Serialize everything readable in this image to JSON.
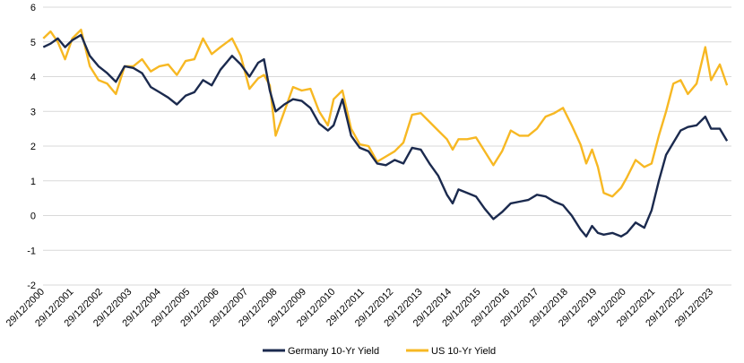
{
  "chart_data": {
    "type": "line",
    "title": "",
    "xlabel": "",
    "ylabel": "",
    "ylim": [
      -2,
      6
    ],
    "yticks": [
      "-2",
      "-1",
      "0",
      "1",
      "2",
      "3",
      "4",
      "5",
      "6"
    ],
    "xlim": [
      2000.99,
      2024.7
    ],
    "xticks": [
      "29/12/2000",
      "29/12/2001",
      "29/12/2002",
      "29/12/2003",
      "29/12/2004",
      "29/12/2005",
      "29/12/2006",
      "29/12/2007",
      "29/12/2008",
      "29/12/2009",
      "29/12/2010",
      "29/12/2011",
      "29/12/2012",
      "29/12/2013",
      "29/12/2014",
      "29/12/2015",
      "29/12/2016",
      "29/12/2017",
      "29/12/2018",
      "29/12/2019",
      "29/12/2020",
      "29/12/2021",
      "29/12/2022",
      "29/12/2023"
    ],
    "grid": "horizontal",
    "legend": "bottom",
    "series": [
      {
        "name": "Germany 10-Yr Yield",
        "color": "#1b2a4e",
        "x": [
          2001.0,
          2001.25,
          2001.5,
          2001.75,
          2002.0,
          2002.3,
          2002.6,
          2002.9,
          2003.2,
          2003.5,
          2003.8,
          2004.1,
          2004.4,
          2004.7,
          2005.0,
          2005.3,
          2005.6,
          2005.9,
          2006.2,
          2006.5,
          2006.8,
          2007.1,
          2007.5,
          2007.8,
          2008.1,
          2008.4,
          2008.6,
          2008.8,
          2009.0,
          2009.3,
          2009.6,
          2009.9,
          2010.2,
          2010.5,
          2010.8,
          2011.0,
          2011.3,
          2011.6,
          2011.9,
          2012.2,
          2012.5,
          2012.8,
          2013.1,
          2013.4,
          2013.7,
          2014.0,
          2014.3,
          2014.6,
          2014.9,
          2015.1,
          2015.3,
          2015.6,
          2015.9,
          2016.2,
          2016.5,
          2016.8,
          2017.1,
          2017.4,
          2017.7,
          2018.0,
          2018.3,
          2018.6,
          2018.9,
          2019.2,
          2019.5,
          2019.7,
          2019.9,
          2020.1,
          2020.3,
          2020.6,
          2020.9,
          2021.1,
          2021.4,
          2021.7,
          2021.95,
          2022.2,
          2022.45,
          2022.7,
          2022.95,
          2023.2,
          2023.5,
          2023.8,
          2024.0,
          2024.3,
          2024.55
        ],
        "values": [
          4.85,
          4.95,
          5.1,
          4.85,
          5.05,
          5.2,
          4.6,
          4.3,
          4.1,
          3.85,
          4.3,
          4.25,
          4.1,
          3.7,
          3.55,
          3.4,
          3.2,
          3.45,
          3.55,
          3.9,
          3.75,
          4.2,
          4.6,
          4.35,
          4.0,
          4.4,
          4.5,
          3.6,
          3.0,
          3.2,
          3.35,
          3.3,
          3.1,
          2.65,
          2.45,
          2.6,
          3.35,
          2.3,
          1.95,
          1.85,
          1.5,
          1.45,
          1.6,
          1.5,
          1.95,
          1.9,
          1.5,
          1.15,
          0.6,
          0.35,
          0.75,
          0.65,
          0.55,
          0.2,
          -0.1,
          0.1,
          0.35,
          0.4,
          0.45,
          0.6,
          0.55,
          0.4,
          0.3,
          0.0,
          -0.4,
          -0.6,
          -0.3,
          -0.5,
          -0.55,
          -0.5,
          -0.6,
          -0.5,
          -0.2,
          -0.35,
          0.15,
          1.0,
          1.75,
          2.1,
          2.45,
          2.55,
          2.6,
          2.85,
          2.5,
          2.5,
          2.15
        ]
      },
      {
        "name": "US 10-Yr Yield",
        "color": "#f7b823",
        "x": [
          2001.0,
          2001.25,
          2001.5,
          2001.75,
          2002.0,
          2002.3,
          2002.6,
          2002.9,
          2003.2,
          2003.5,
          2003.8,
          2004.1,
          2004.4,
          2004.7,
          2005.0,
          2005.3,
          2005.6,
          2005.9,
          2006.2,
          2006.5,
          2006.8,
          2007.1,
          2007.5,
          2007.8,
          2008.1,
          2008.4,
          2008.6,
          2008.8,
          2009.0,
          2009.3,
          2009.6,
          2009.9,
          2010.2,
          2010.5,
          2010.8,
          2011.0,
          2011.3,
          2011.6,
          2011.9,
          2012.2,
          2012.5,
          2012.8,
          2013.1,
          2013.4,
          2013.7,
          2014.0,
          2014.3,
          2014.6,
          2014.9,
          2015.1,
          2015.3,
          2015.6,
          2015.9,
          2016.2,
          2016.5,
          2016.8,
          2017.1,
          2017.4,
          2017.7,
          2018.0,
          2018.3,
          2018.6,
          2018.9,
          2019.2,
          2019.5,
          2019.7,
          2019.9,
          2020.1,
          2020.3,
          2020.6,
          2020.9,
          2021.1,
          2021.4,
          2021.7,
          2021.95,
          2022.2,
          2022.45,
          2022.7,
          2022.95,
          2023.2,
          2023.5,
          2023.8,
          2024.0,
          2024.3,
          2024.55
        ],
        "values": [
          5.1,
          5.3,
          5.0,
          4.5,
          5.1,
          5.35,
          4.3,
          3.9,
          3.8,
          3.5,
          4.3,
          4.3,
          4.5,
          4.15,
          4.3,
          4.35,
          4.05,
          4.45,
          4.5,
          5.1,
          4.65,
          4.85,
          5.1,
          4.6,
          3.65,
          3.95,
          4.05,
          3.75,
          2.3,
          3.0,
          3.7,
          3.6,
          3.65,
          3.0,
          2.6,
          3.35,
          3.6,
          2.5,
          2.05,
          2.0,
          1.55,
          1.7,
          1.85,
          2.1,
          2.9,
          2.95,
          2.7,
          2.45,
          2.2,
          1.9,
          2.2,
          2.2,
          2.25,
          1.85,
          1.45,
          1.85,
          2.45,
          2.3,
          2.3,
          2.5,
          2.85,
          2.95,
          3.1,
          2.6,
          2.05,
          1.5,
          1.9,
          1.4,
          0.65,
          0.55,
          0.8,
          1.1,
          1.6,
          1.4,
          1.5,
          2.3,
          3.0,
          3.8,
          3.9,
          3.5,
          3.8,
          4.85,
          3.9,
          4.35,
          3.75
        ]
      }
    ]
  }
}
